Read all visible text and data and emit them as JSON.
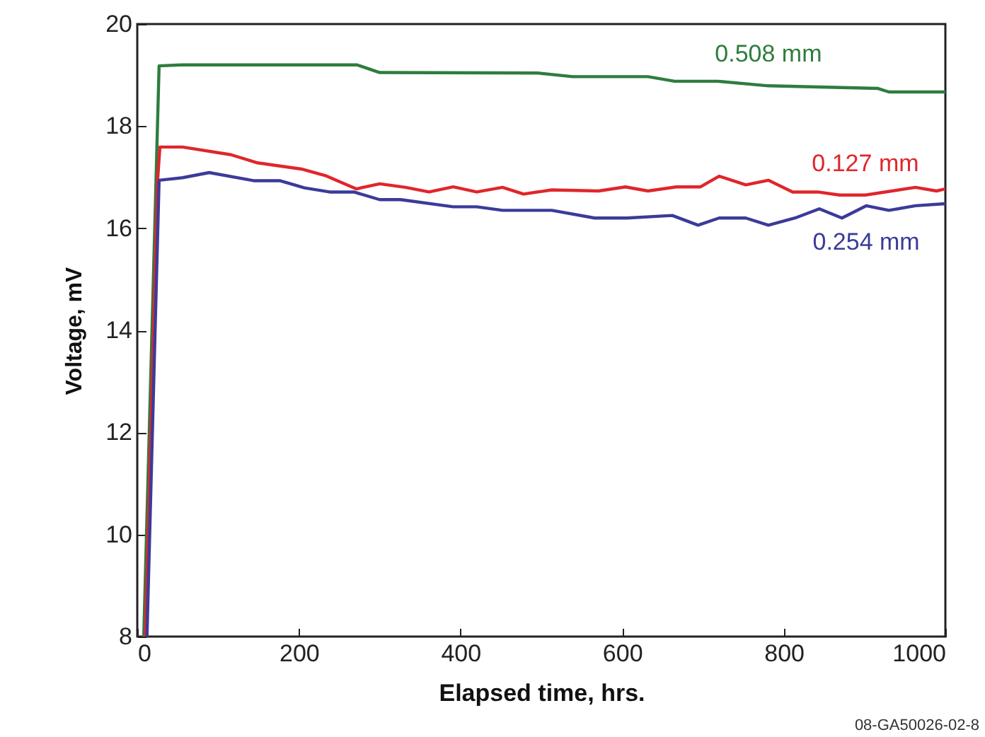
{
  "chart_data": {
    "type": "line",
    "xlabel": "Elapsed time, hrs.",
    "ylabel": "Voltage, mV",
    "xlim": [
      0,
      1000
    ],
    "xticks": [
      0,
      200,
      400,
      600,
      800,
      1000
    ],
    "ylim": [
      8,
      20
    ],
    "yticks": [
      8,
      10,
      12,
      14,
      16,
      18,
      20
    ],
    "grid": false,
    "legend": false,
    "marker": "none",
    "line_style": "solid",
    "annotations": [
      "08-GA50026-02-8"
    ],
    "series": [
      {
        "name": "0.508 mm",
        "color": "#2e7d3e",
        "x": [
          8,
          27,
          56,
          272,
          300,
          496,
          539,
          632,
          665,
          718,
          781,
          916,
          930,
          1000
        ],
        "values": [
          8,
          19.18,
          19.2,
          19.2,
          19.05,
          19.04,
          18.97,
          18.97,
          18.88,
          18.88,
          18.79,
          18.74,
          18.67,
          18.67
        ]
      },
      {
        "name": "0.127 mm",
        "color": "#e0262b",
        "x": [
          10,
          25,
          28,
          56,
          116,
          149,
          203,
          233,
          271,
          300,
          332,
          361,
          391,
          420,
          452,
          478,
          513,
          571,
          604,
          632,
          667,
          697,
          720,
          753,
          781,
          811,
          842,
          869,
          901,
          963,
          989,
          1000
        ],
        "values": [
          8,
          16.9,
          17.59,
          17.59,
          17.44,
          17.28,
          17.16,
          17.03,
          16.77,
          16.87,
          16.8,
          16.71,
          16.81,
          16.71,
          16.8,
          16.67,
          16.75,
          16.73,
          16.81,
          16.73,
          16.81,
          16.81,
          17.02,
          16.85,
          16.94,
          16.71,
          16.71,
          16.65,
          16.65,
          16.8,
          16.73,
          16.77
        ]
      },
      {
        "name": "0.254 mm",
        "color": "#3b3b9a",
        "x": [
          12,
          27,
          56,
          89,
          145,
          177,
          207,
          238,
          268,
          300,
          326,
          391,
          420,
          452,
          513,
          566,
          606,
          662,
          694,
          720,
          753,
          781,
          814,
          844,
          872,
          902,
          930,
          963,
          1000
        ],
        "values": [
          8,
          16.94,
          16.99,
          17.09,
          16.93,
          16.93,
          16.79,
          16.71,
          16.71,
          16.56,
          16.56,
          16.42,
          16.42,
          16.35,
          16.35,
          16.2,
          16.2,
          16.25,
          16.06,
          16.2,
          16.2,
          16.06,
          16.2,
          16.38,
          16.2,
          16.44,
          16.35,
          16.44,
          16.48
        ]
      }
    ]
  }
}
